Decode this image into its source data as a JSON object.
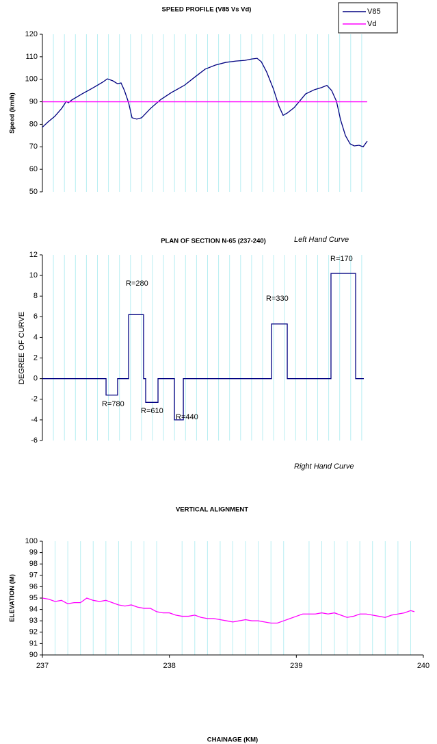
{
  "chart_data": [
    {
      "type": "line",
      "title": "SPEED PROFILE (V85 Vs Vd)",
      "ylabel": "Speed (km/h)",
      "xlim": [
        237,
        240
      ],
      "ylim": [
        50,
        120
      ],
      "yticks": [
        50,
        60,
        70,
        80,
        90,
        100,
        110,
        120
      ],
      "xgrid": [
        237.1,
        237.2,
        237.3,
        237.4,
        237.5,
        237.6,
        237.7,
        237.8,
        237.9,
        238.0,
        238.1,
        238.2,
        238.3,
        238.4,
        238.5,
        238.6,
        238.7,
        238.8,
        238.9,
        239.0,
        239.1,
        239.2,
        239.3,
        239.4,
        239.5,
        239.6,
        239.7,
        239.8,
        239.9
      ],
      "grid_color": "#b8eef2",
      "legend": "top-right",
      "series": [
        {
          "name": "V85",
          "color": "#000080",
          "x": [
            237.0,
            237.05,
            237.112,
            237.174,
            237.205,
            237.217,
            237.236,
            237.267,
            237.36,
            237.453,
            237.547,
            237.59,
            237.64,
            237.683,
            237.714,
            237.745,
            237.783,
            237.814,
            237.857,
            237.901,
            237.981,
            238.075,
            238.168,
            238.292,
            238.385,
            238.478,
            238.571,
            238.665,
            238.758,
            238.839,
            238.901,
            238.95,
            238.988,
            239.037,
            239.099,
            239.149,
            239.186,
            239.224,
            239.286,
            239.348,
            239.391,
            239.472,
            239.534,
            239.584,
            239.627,
            239.671,
            239.708,
            239.752,
            239.795,
            239.832,
            239.876,
            239.913,
            239.95
          ],
          "values": [
            78.7,
            81,
            83.5,
            87,
            89.3,
            90.2,
            89.6,
            90.8,
            93.5,
            96,
            98.7,
            100.2,
            99.3,
            98,
            98.4,
            95,
            89.6,
            82.9,
            82.3,
            82.9,
            87,
            91,
            94,
            97.4,
            101,
            104.5,
            106.3,
            107.5,
            108.1,
            108.4,
            109,
            109.3,
            107.8,
            103.2,
            95.6,
            88,
            84,
            85,
            87.4,
            91,
            93.5,
            95.4,
            96.3,
            97.3,
            95,
            90.2,
            82,
            75,
            71.3,
            70.4,
            70.7,
            70,
            72.5
          ]
        },
        {
          "name": "Vd",
          "color": "#ff00ff",
          "x": [
            237.0,
            239.95
          ],
          "values": [
            90,
            90
          ]
        }
      ]
    },
    {
      "type": "line",
      "title": "PLAN OF SECTION N-65 (237-240)",
      "ylabel": "DEGREE OF CURVE",
      "xlim": [
        237,
        240
      ],
      "ylim": [
        -6,
        12
      ],
      "yticks": [
        -6,
        -4,
        -2,
        0,
        2,
        4,
        6,
        8,
        10,
        12
      ],
      "xgrid": [
        237.1,
        237.2,
        237.3,
        237.4,
        237.5,
        237.6,
        237.7,
        237.8,
        237.9,
        238.0,
        238.1,
        238.2,
        238.3,
        238.4,
        238.5,
        238.6,
        238.7,
        238.8,
        238.9,
        239.0,
        239.1,
        239.2,
        239.3,
        239.4,
        239.5,
        239.6,
        239.7,
        239.8,
        239.9
      ],
      "grid_color": "#b8eef2",
      "series": [
        {
          "color": "#000080",
          "x": [
            237.0,
            237.578,
            237.578,
            237.683,
            237.683,
            237.783,
            237.783,
            237.919,
            237.919,
            237.938,
            237.938,
            238.05,
            238.05,
            238.199,
            238.199,
            238.28,
            238.28,
            239.081,
            239.081,
            239.224,
            239.224,
            239.621,
            239.621,
            239.845,
            239.845,
            239.919
          ],
          "values": [
            0,
            0,
            -1.6,
            -1.6,
            0,
            0,
            6.2,
            6.2,
            0,
            0,
            -2.3,
            -2.3,
            0,
            0,
            -4,
            -4,
            0,
            0,
            5.3,
            5.3,
            0,
            0,
            10.2,
            10.2,
            0,
            0
          ]
        }
      ],
      "annotations": [
        {
          "text": "Left Hand Curve",
          "italic": true
        },
        {
          "text": "R=170",
          "italic": false
        },
        {
          "text": "R=280",
          "italic": false
        },
        {
          "text": "R=330",
          "italic": false
        },
        {
          "text": "R=780",
          "italic": false
        },
        {
          "text": "R=610",
          "italic": false
        },
        {
          "text": "R=440",
          "italic": false
        },
        {
          "text": "Right Hand Curve",
          "italic": true
        }
      ]
    },
    {
      "type": "line",
      "title": "VERTICAL ALIGNMENT",
      "ylabel": "ELEVATION (M)",
      "xlabel": "CHAINAGE (KM)",
      "xlim": [
        237,
        240
      ],
      "xticks": [
        237,
        238,
        239,
        240
      ],
      "ylim": [
        90,
        100
      ],
      "yticks": [
        90,
        91,
        92,
        93,
        94,
        95,
        96,
        97,
        98,
        99,
        100
      ],
      "xgrid": [
        237.1,
        237.2,
        237.3,
        237.4,
        237.5,
        237.6,
        237.7,
        237.8,
        237.9,
        238.1,
        238.2,
        238.3,
        238.4,
        238.5,
        238.6,
        238.7,
        238.8,
        238.9,
        239.1,
        239.2,
        239.3,
        239.4,
        239.5,
        239.6,
        239.7,
        239.8,
        239.9
      ],
      "grid_color": "#b8eef2",
      "series": [
        {
          "color": "#ff00ff",
          "x": [
            237.0,
            237.05,
            237.1,
            237.15,
            237.2,
            237.25,
            237.3,
            237.35,
            237.4,
            237.45,
            237.5,
            237.55,
            237.6,
            237.65,
            237.7,
            237.75,
            237.8,
            237.85,
            237.9,
            237.95,
            238.0,
            238.05,
            238.1,
            238.15,
            238.2,
            238.25,
            238.3,
            238.35,
            238.4,
            238.45,
            238.5,
            238.55,
            238.6,
            238.65,
            238.7,
            238.75,
            238.8,
            238.85,
            238.9,
            238.95,
            239.0,
            239.05,
            239.1,
            239.15,
            239.2,
            239.25,
            239.3,
            239.35,
            239.4,
            239.45,
            239.5,
            239.55,
            239.6,
            239.65,
            239.7,
            239.75,
            239.8,
            239.85,
            239.9,
            239.93
          ],
          "values": [
            95.0,
            94.9,
            94.7,
            94.8,
            94.5,
            94.6,
            94.6,
            95.0,
            94.8,
            94.7,
            94.8,
            94.6,
            94.4,
            94.3,
            94.4,
            94.2,
            94.1,
            94.1,
            93.8,
            93.7,
            93.7,
            93.5,
            93.4,
            93.4,
            93.5,
            93.3,
            93.2,
            93.2,
            93.1,
            93.0,
            92.9,
            93.0,
            93.1,
            93.0,
            93.0,
            92.9,
            92.8,
            92.8,
            93.0,
            93.2,
            93.4,
            93.6,
            93.6,
            93.6,
            93.7,
            93.6,
            93.7,
            93.5,
            93.3,
            93.4,
            93.6,
            93.6,
            93.5,
            93.4,
            93.3,
            93.5,
            93.6,
            93.7,
            93.9,
            93.8
          ]
        }
      ]
    }
  ]
}
